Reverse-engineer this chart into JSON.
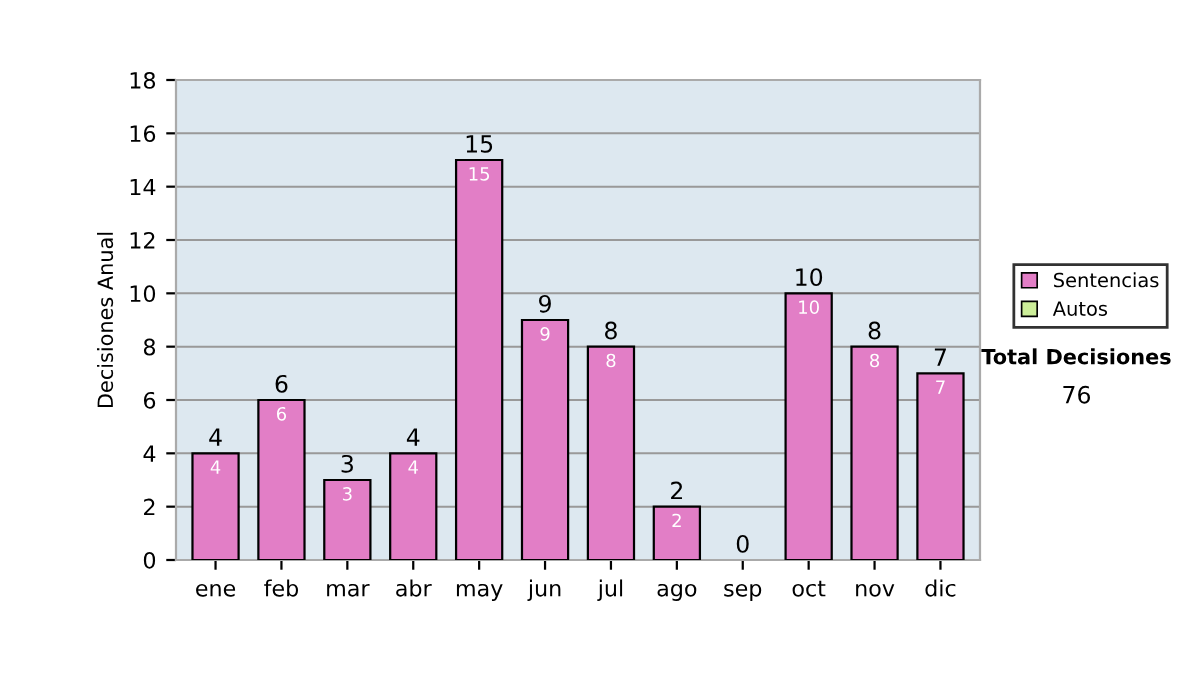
{
  "chart_data": {
    "type": "bar",
    "stacked": true,
    "ylabel": "Decisiones Anual",
    "categories": [
      "ene",
      "feb",
      "mar",
      "abr",
      "may",
      "jun",
      "jul",
      "ago",
      "sep",
      "oct",
      "nov",
      "dic"
    ],
    "series": [
      {
        "name": "Sentencias",
        "color": "#e27ec6",
        "values": [
          4,
          6,
          3,
          4,
          15,
          9,
          8,
          2,
          0,
          10,
          8,
          7
        ],
        "value_labels": [
          "4",
          "6",
          "3",
          "4",
          "15",
          "9",
          "8",
          "2",
          null,
          "10",
          "8",
          "7"
        ]
      },
      {
        "name": "Autos",
        "color": "#ccee99",
        "values": [
          0,
          0,
          0,
          0,
          0,
          0,
          0,
          0,
          0,
          0,
          0,
          0
        ]
      }
    ],
    "totals": [
      "4",
      "6",
      "3",
      "4",
      "15",
      "9",
      "8",
      "2",
      "0",
      "10",
      "8",
      "7"
    ],
    "ylim": [
      0,
      18
    ],
    "yticks": [
      0,
      2,
      4,
      6,
      8,
      10,
      12,
      14,
      16,
      18
    ],
    "grid": "y",
    "legend": "right",
    "annotations": [
      "Total Decisiones",
      "76"
    ]
  }
}
